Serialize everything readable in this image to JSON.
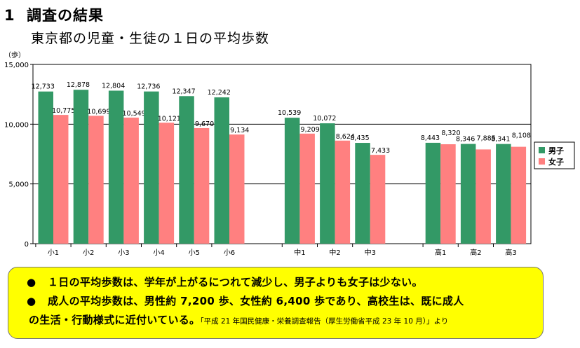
{
  "heading": {
    "number": "1",
    "text": "調査の結果"
  },
  "subtitle": "東京都の児童・生徒の１日の平均歩数",
  "chart_data": {
    "type": "bar",
    "title": "東京都の児童・生徒の１日の平均歩数",
    "ylabel": "（歩）",
    "ylim": [
      0,
      15000
    ],
    "yticks": [
      "0",
      "5,000",
      "10,000",
      "15,000"
    ],
    "grid": true,
    "legend_position": "right",
    "groups": [
      [
        "小1",
        "小2",
        "小3",
        "小4",
        "小5",
        "小6"
      ],
      [
        "中1",
        "中2",
        "中3"
      ],
      [
        "高1",
        "高2",
        "高3"
      ]
    ],
    "categories": [
      "小1",
      "小2",
      "小3",
      "小4",
      "小5",
      "小6",
      "中1",
      "中2",
      "中3",
      "高1",
      "高2",
      "高3"
    ],
    "series": [
      {
        "name": "男子",
        "color": "#339966",
        "values": [
          12733,
          12878,
          12804,
          12736,
          12347,
          12242,
          10539,
          10072,
          8435,
          8443,
          8346,
          8341
        ],
        "labels": [
          "12,733",
          "12,878",
          "12,804",
          "12,736",
          "12,347",
          "12,242",
          "10,539",
          "10,072",
          "8,435",
          "8,443",
          "8,346",
          "8,341"
        ]
      },
      {
        "name": "女子",
        "color": "#ff8080",
        "values": [
          10775,
          10699,
          10549,
          10121,
          9670,
          9134,
          9209,
          8624,
          7433,
          8320,
          7885,
          8108
        ],
        "labels": [
          "10,775",
          "10,699",
          "10,549",
          "10,121",
          "9,670",
          "9,134",
          "9,209",
          "8,624",
          "7,433",
          "8,320",
          "7,885",
          "8,108"
        ]
      }
    ]
  },
  "notes": {
    "bullet": "●",
    "line1": "１日の平均歩数は、学年が上がるにつれて減少し、男子よりも女子は少ない。",
    "line2": "成人の平均歩数は、男性約 7,200 歩、女性約 6,400 歩であり、高校生は、既に成人",
    "line3": "の生活・行動様式に近付いている。",
    "source": "「平成 21 年国民健康・栄養調査報告（厚生労働省平成 23 年 10 月）」より"
  }
}
